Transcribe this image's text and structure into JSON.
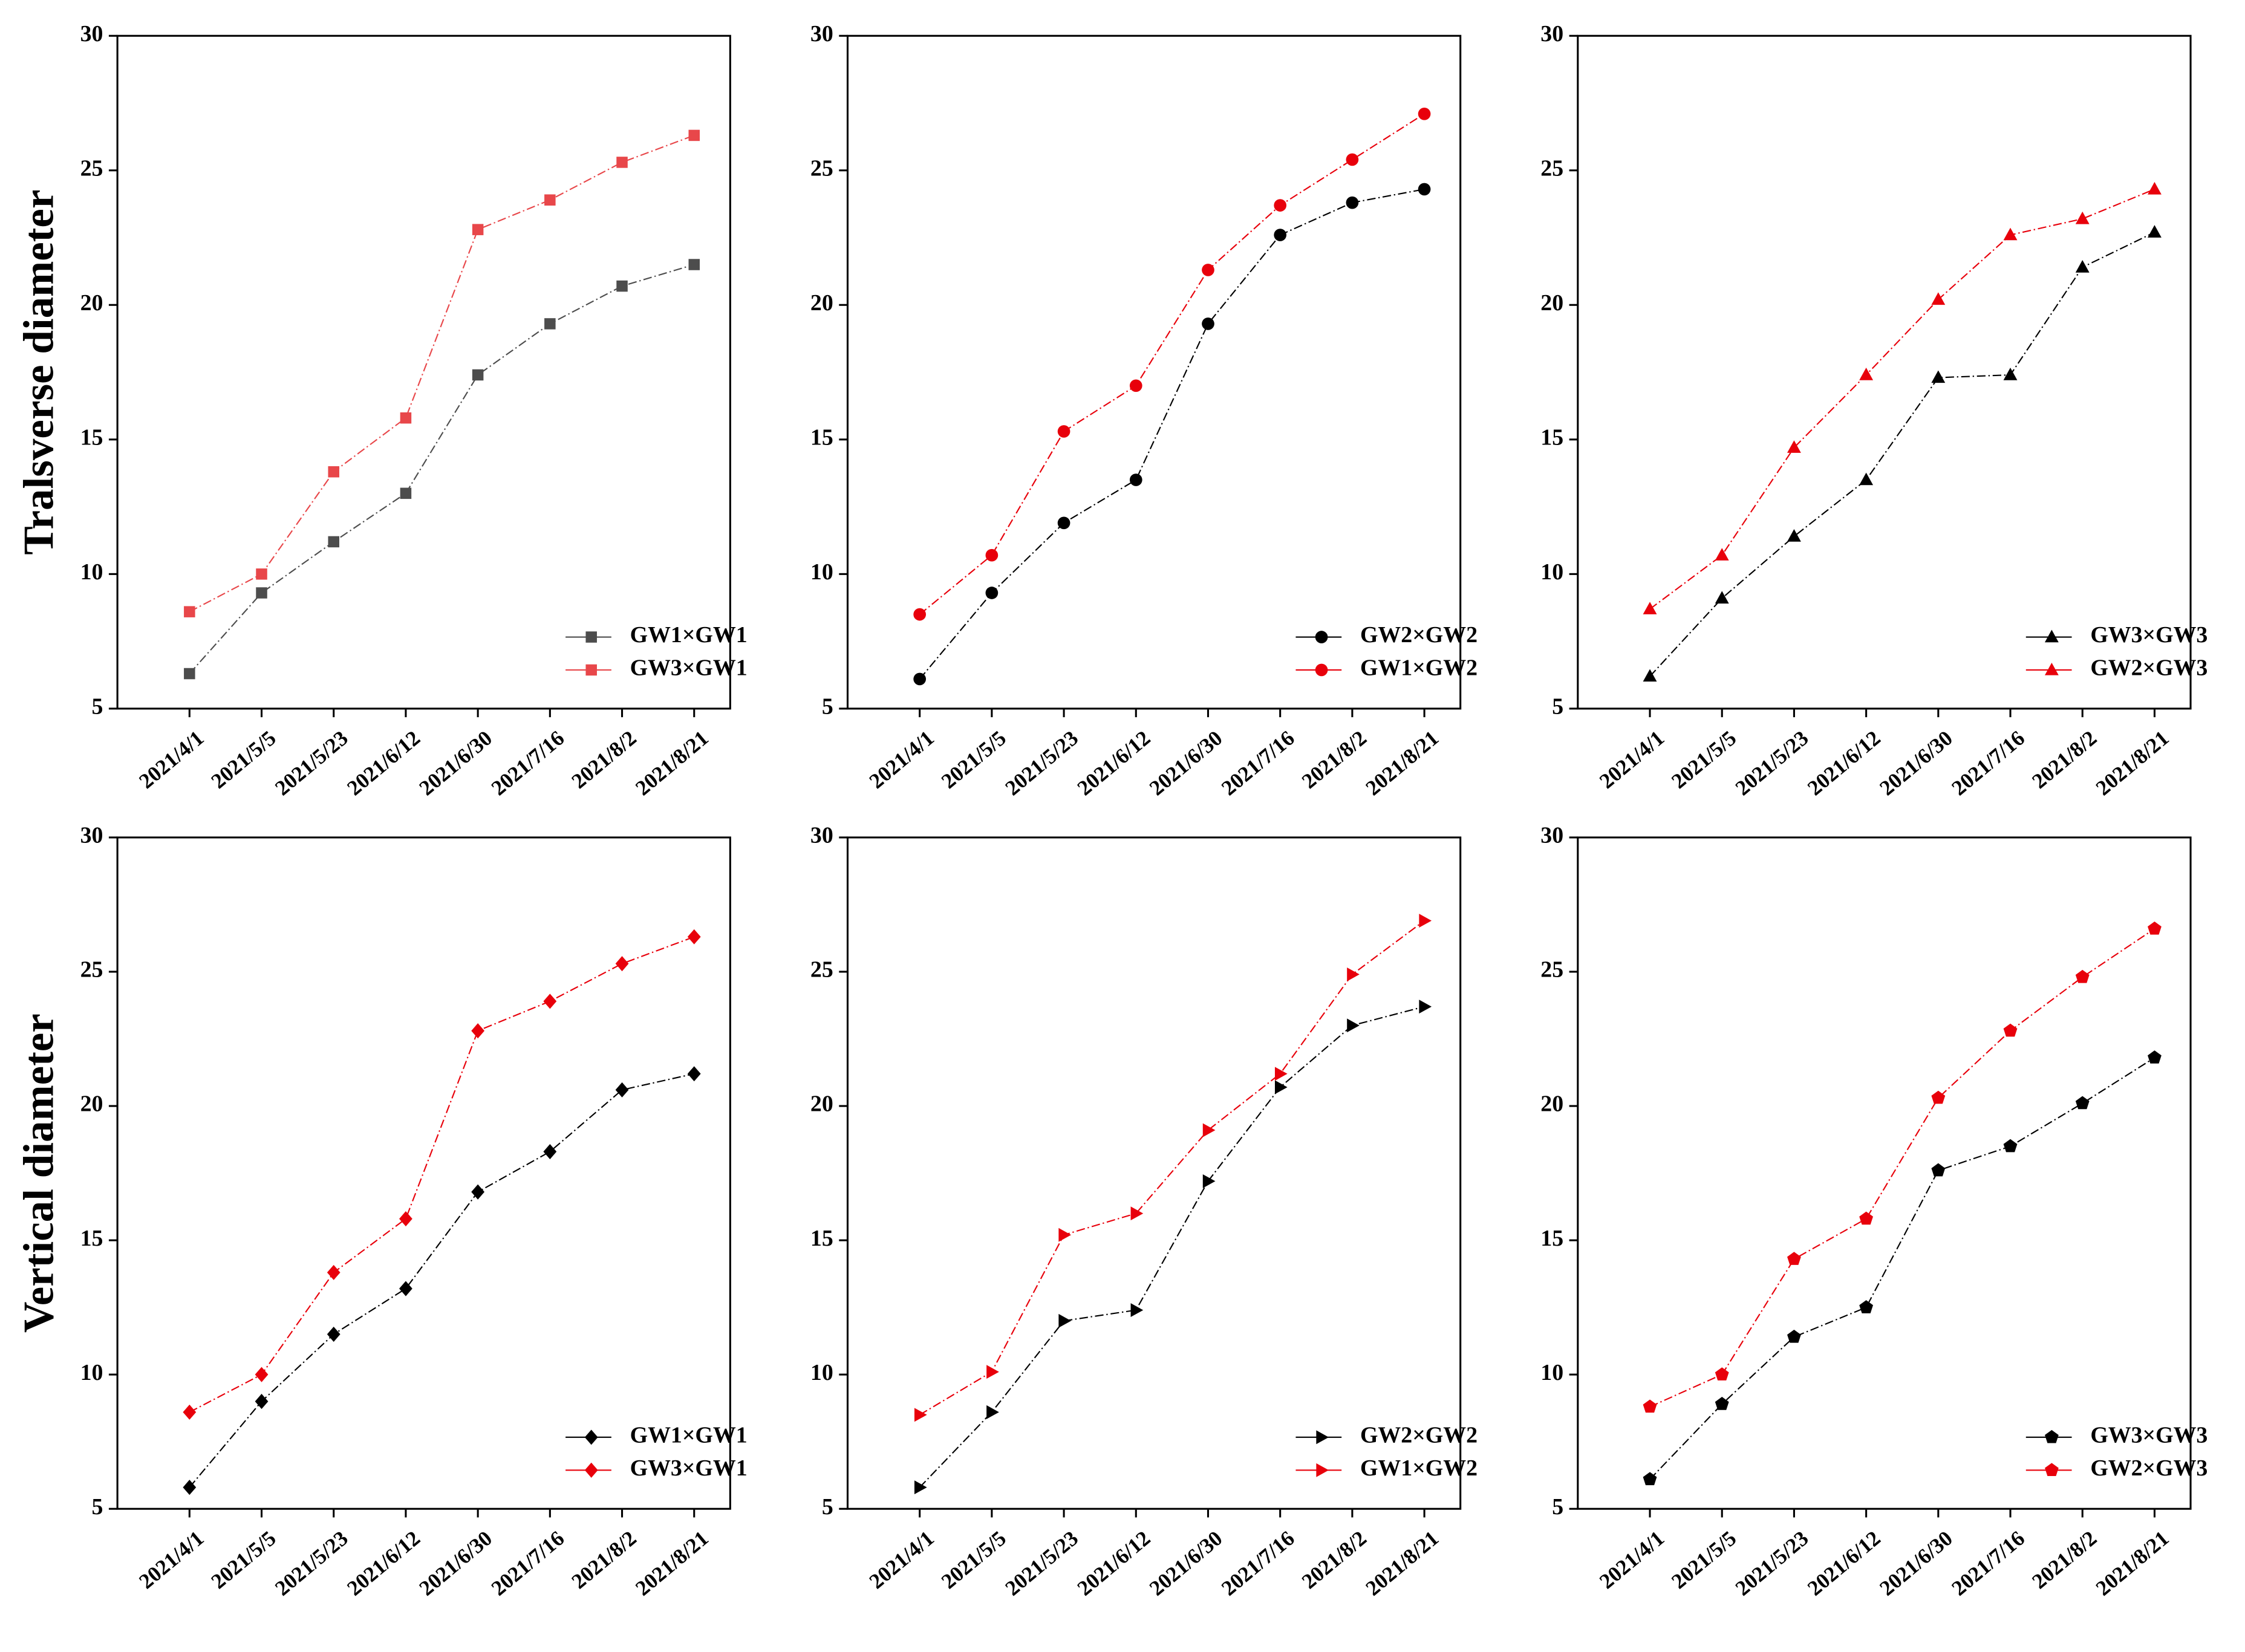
{
  "chart_data": [
    {
      "type": "line",
      "ylabel": "Tralsverse diameter",
      "marker": "square",
      "legend": "lower right",
      "ylim": [
        5,
        30
      ],
      "yticks": [
        5,
        10,
        15,
        20,
        25,
        30
      ],
      "categories": [
        "2021/4/1",
        "2021/5/5",
        "2021/5/23",
        "2021/6/12",
        "2021/6/30",
        "2021/7/16",
        "2021/8/2",
        "2021/8/21"
      ],
      "series": [
        {
          "name": "GW1×GW1",
          "color": "#4d4d4d",
          "values": [
            6.3,
            9.3,
            11.2,
            13.0,
            17.4,
            19.3,
            20.7,
            21.5
          ]
        },
        {
          "name": "GW3×GW1",
          "color": "#e8474a",
          "values": [
            8.6,
            10.0,
            13.8,
            15.8,
            22.8,
            23.9,
            25.3,
            26.3
          ]
        }
      ]
    },
    {
      "type": "line",
      "marker": "circle",
      "legend": "lower right",
      "ylim": [
        5,
        30
      ],
      "yticks": [
        5,
        10,
        15,
        20,
        25,
        30
      ],
      "categories": [
        "2021/4/1",
        "2021/5/5",
        "2021/5/23",
        "2021/6/12",
        "2021/6/30",
        "2021/7/16",
        "2021/8/2",
        "2021/8/21"
      ],
      "series": [
        {
          "name": "GW2×GW2",
          "color": "#000000",
          "values": [
            6.1,
            9.3,
            11.9,
            13.5,
            19.3,
            22.6,
            23.8,
            24.3
          ]
        },
        {
          "name": "GW1×GW2",
          "color": "#e8000b",
          "values": [
            8.5,
            10.7,
            15.3,
            17.0,
            21.3,
            23.7,
            25.4,
            27.1
          ]
        }
      ]
    },
    {
      "type": "line",
      "marker": "triangle-up",
      "legend": "lower right",
      "ylim": [
        5,
        30
      ],
      "yticks": [
        5,
        10,
        15,
        20,
        25,
        30
      ],
      "categories": [
        "2021/4/1",
        "2021/5/5",
        "2021/5/23",
        "2021/6/12",
        "2021/6/30",
        "2021/7/16",
        "2021/8/2",
        "2021/8/21"
      ],
      "series": [
        {
          "name": "GW3×GW3",
          "color": "#000000",
          "values": [
            6.2,
            9.1,
            11.4,
            13.5,
            17.3,
            17.4,
            21.4,
            22.7
          ]
        },
        {
          "name": "GW2×GW3",
          "color": "#e8000b",
          "values": [
            8.7,
            10.7,
            14.7,
            17.4,
            20.2,
            22.6,
            23.2,
            24.3
          ]
        }
      ]
    },
    {
      "type": "line",
      "ylabel": "Vertical diameter",
      "marker": "diamond",
      "legend": "lower right",
      "ylim": [
        5,
        30
      ],
      "yticks": [
        5,
        10,
        15,
        20,
        25,
        30
      ],
      "categories": [
        "2021/4/1",
        "2021/5/5",
        "2021/5/23",
        "2021/6/12",
        "2021/6/30",
        "2021/7/16",
        "2021/8/2",
        "2021/8/21"
      ],
      "series": [
        {
          "name": "GW1×GW1",
          "color": "#000000",
          "values": [
            5.8,
            9.0,
            11.5,
            13.2,
            16.8,
            18.3,
            20.6,
            21.2
          ]
        },
        {
          "name": "GW3×GW1",
          "color": "#e8000b",
          "values": [
            8.6,
            10.0,
            13.8,
            15.8,
            22.8,
            23.9,
            25.3,
            26.3
          ]
        }
      ]
    },
    {
      "type": "line",
      "marker": "triangle-right",
      "legend": "lower right",
      "ylim": [
        5,
        30
      ],
      "yticks": [
        5,
        10,
        15,
        20,
        25,
        30
      ],
      "categories": [
        "2021/4/1",
        "2021/5/5",
        "2021/5/23",
        "2021/6/12",
        "2021/6/30",
        "2021/7/16",
        "2021/8/2",
        "2021/8/21"
      ],
      "series": [
        {
          "name": "GW2×GW2",
          "color": "#000000",
          "values": [
            5.8,
            8.6,
            12.0,
            12.4,
            17.2,
            20.7,
            23.0,
            23.7
          ]
        },
        {
          "name": "GW1×GW2",
          "color": "#e8000b",
          "values": [
            8.5,
            10.1,
            15.2,
            16.0,
            19.1,
            21.2,
            24.9,
            26.9
          ]
        }
      ]
    },
    {
      "type": "line",
      "marker": "pentagon",
      "legend": "lower right",
      "ylim": [
        5,
        30
      ],
      "yticks": [
        5,
        10,
        15,
        20,
        25,
        30
      ],
      "categories": [
        "2021/4/1",
        "2021/5/5",
        "2021/5/23",
        "2021/6/12",
        "2021/6/30",
        "2021/7/16",
        "2021/8/2",
        "2021/8/21"
      ],
      "series": [
        {
          "name": "GW3×GW3",
          "color": "#000000",
          "values": [
            6.1,
            8.9,
            11.4,
            12.5,
            17.6,
            18.5,
            20.1,
            21.8
          ]
        },
        {
          "name": "GW2×GW3",
          "color": "#e8000b",
          "values": [
            8.8,
            10.0,
            14.3,
            15.8,
            20.3,
            22.8,
            24.8,
            26.6
          ]
        }
      ]
    }
  ]
}
